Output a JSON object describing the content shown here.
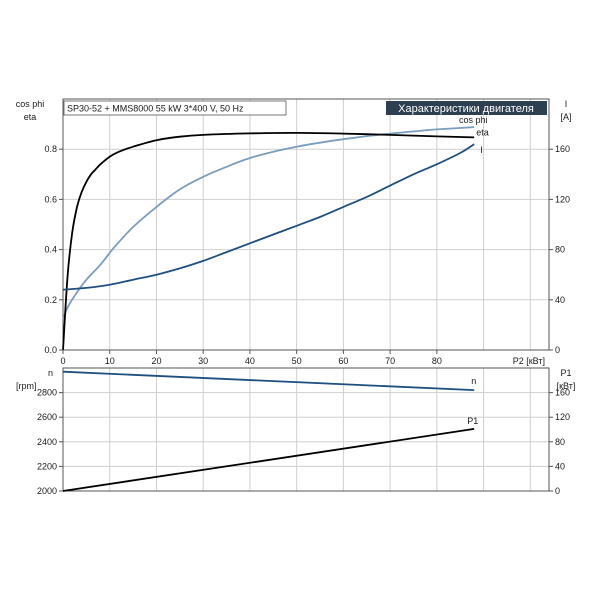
{
  "header": {
    "model": "SP30-52 + MMS8000   55 kW   3*400 V, 50 Hz",
    "title": "Характеристики двигателя"
  },
  "colors": {
    "background": "#ffffff",
    "grid": "#cfcfcf",
    "title_bg": "#2f3f52",
    "cosphi": "#7a9cbd",
    "eta": "#000000",
    "current": "#1f4f80",
    "speed": "#1f4f80",
    "p1": "#000000"
  },
  "chart_data": [
    {
      "type": "line",
      "xlabel": "P2 [кВт]",
      "xlim": [
        0,
        104
      ],
      "x_ticks": [
        0,
        10,
        20,
        30,
        40,
        50,
        60,
        70,
        80
      ],
      "left_axis": {
        "label_lines": [
          "cos phi",
          "eta"
        ],
        "ylim": [
          0,
          1.0
        ],
        "ticks": [
          0.0,
          0.2,
          0.4,
          0.6,
          0.8
        ]
      },
      "right_axis": {
        "label_lines": [
          "I",
          "[A]"
        ],
        "ylim": [
          0,
          200
        ],
        "ticks": [
          0,
          40,
          80,
          120,
          160
        ]
      },
      "grid": true,
      "series": [
        {
          "name": "cos phi",
          "axis": "left",
          "color": "#7a9cbd",
          "x": [
            0,
            1,
            3,
            5,
            8,
            11,
            15,
            20,
            25,
            30,
            35,
            40,
            45,
            50,
            55,
            60,
            65,
            70,
            75,
            80,
            88
          ],
          "y": [
            0.12,
            0.17,
            0.23,
            0.28,
            0.34,
            0.41,
            0.49,
            0.57,
            0.64,
            0.69,
            0.73,
            0.765,
            0.79,
            0.81,
            0.826,
            0.84,
            0.852,
            0.862,
            0.871,
            0.879,
            0.888
          ]
        },
        {
          "name": "eta",
          "axis": "left",
          "color": "#000000",
          "x": [
            0,
            1,
            2,
            3,
            4,
            5,
            6,
            7,
            8,
            10,
            12,
            15,
            20,
            25,
            30,
            40,
            50,
            60,
            70,
            80,
            88
          ],
          "y": [
            0.0,
            0.3,
            0.47,
            0.57,
            0.63,
            0.67,
            0.7,
            0.72,
            0.74,
            0.77,
            0.79,
            0.81,
            0.836,
            0.85,
            0.857,
            0.863,
            0.865,
            0.862,
            0.857,
            0.851,
            0.847
          ]
        },
        {
          "name": "I",
          "axis": "right",
          "color": "#1f4f80",
          "x": [
            0,
            5,
            10,
            15,
            20,
            25,
            30,
            35,
            40,
            45,
            50,
            55,
            60,
            65,
            70,
            75,
            80,
            85,
            88
          ],
          "y": [
            48,
            49.5,
            52,
            56,
            60,
            65,
            71,
            78,
            85,
            92,
            99,
            106,
            114,
            122,
            131,
            140,
            148,
            157,
            164
          ]
        }
      ]
    },
    {
      "type": "line",
      "xlim": [
        0,
        104
      ],
      "left_axis": {
        "label_lines": [
          "n",
          "[rpm]"
        ],
        "ylim": [
          2000,
          3000
        ],
        "ticks": [
          2000,
          2200,
          2400,
          2600,
          2800
        ]
      },
      "right_axis": {
        "label_lines": [
          "P1",
          "[кВт]"
        ],
        "ylim": [
          0,
          200
        ],
        "ticks": [
          0,
          40,
          80,
          120,
          160
        ]
      },
      "grid": true,
      "series": [
        {
          "name": "n",
          "axis": "left",
          "color": "#1f4f80",
          "x": [
            0,
            88
          ],
          "y": [
            2970,
            2820
          ]
        },
        {
          "name": "P1",
          "axis": "right",
          "color": "#000000",
          "x": [
            0,
            88
          ],
          "y": [
            0,
            101
          ]
        }
      ]
    }
  ]
}
